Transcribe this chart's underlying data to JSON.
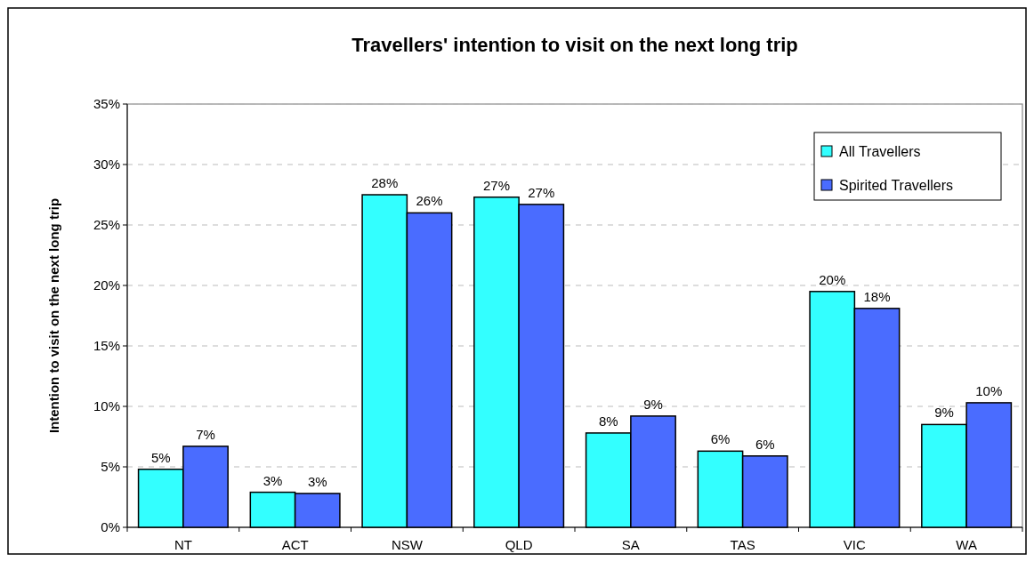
{
  "chart_data": {
    "type": "bar",
    "title": "Travellers' intention to visit on the next long trip",
    "ylabel": "Intention to visit on the next long trip",
    "categories": [
      "NT",
      "ACT",
      "NSW",
      "QLD",
      "SA",
      "TAS",
      "VIC",
      "WA"
    ],
    "series": [
      {
        "name": "All Travellers",
        "color": "#33ffff",
        "values": [
          4.8,
          2.9,
          27.5,
          27.3,
          7.8,
          6.3,
          19.5,
          8.5
        ],
        "value_labels": [
          "5%",
          "3%",
          "28%",
          "27%",
          "8%",
          "6%",
          "20%",
          "9%"
        ]
      },
      {
        "name": "Spirited Travellers",
        "color": "#4a6cff",
        "values": [
          6.7,
          2.8,
          26.0,
          26.7,
          9.2,
          5.9,
          18.1,
          10.3
        ],
        "value_labels": [
          "7%",
          "3%",
          "26%",
          "27%",
          "9%",
          "6%",
          "18%",
          "10%"
        ]
      }
    ],
    "ylim": [
      0,
      35
    ],
    "yticks": [
      {
        "value": 0,
        "label": "0%"
      },
      {
        "value": 5,
        "label": "5%"
      },
      {
        "value": 10,
        "label": "10%"
      },
      {
        "value": 15,
        "label": "15%"
      },
      {
        "value": 20,
        "label": "20%"
      },
      {
        "value": 25,
        "label": "25%"
      },
      {
        "value": 30,
        "label": "30%"
      },
      {
        "value": 35,
        "label": "35%"
      }
    ],
    "grid": "y",
    "legend": "top right"
  }
}
